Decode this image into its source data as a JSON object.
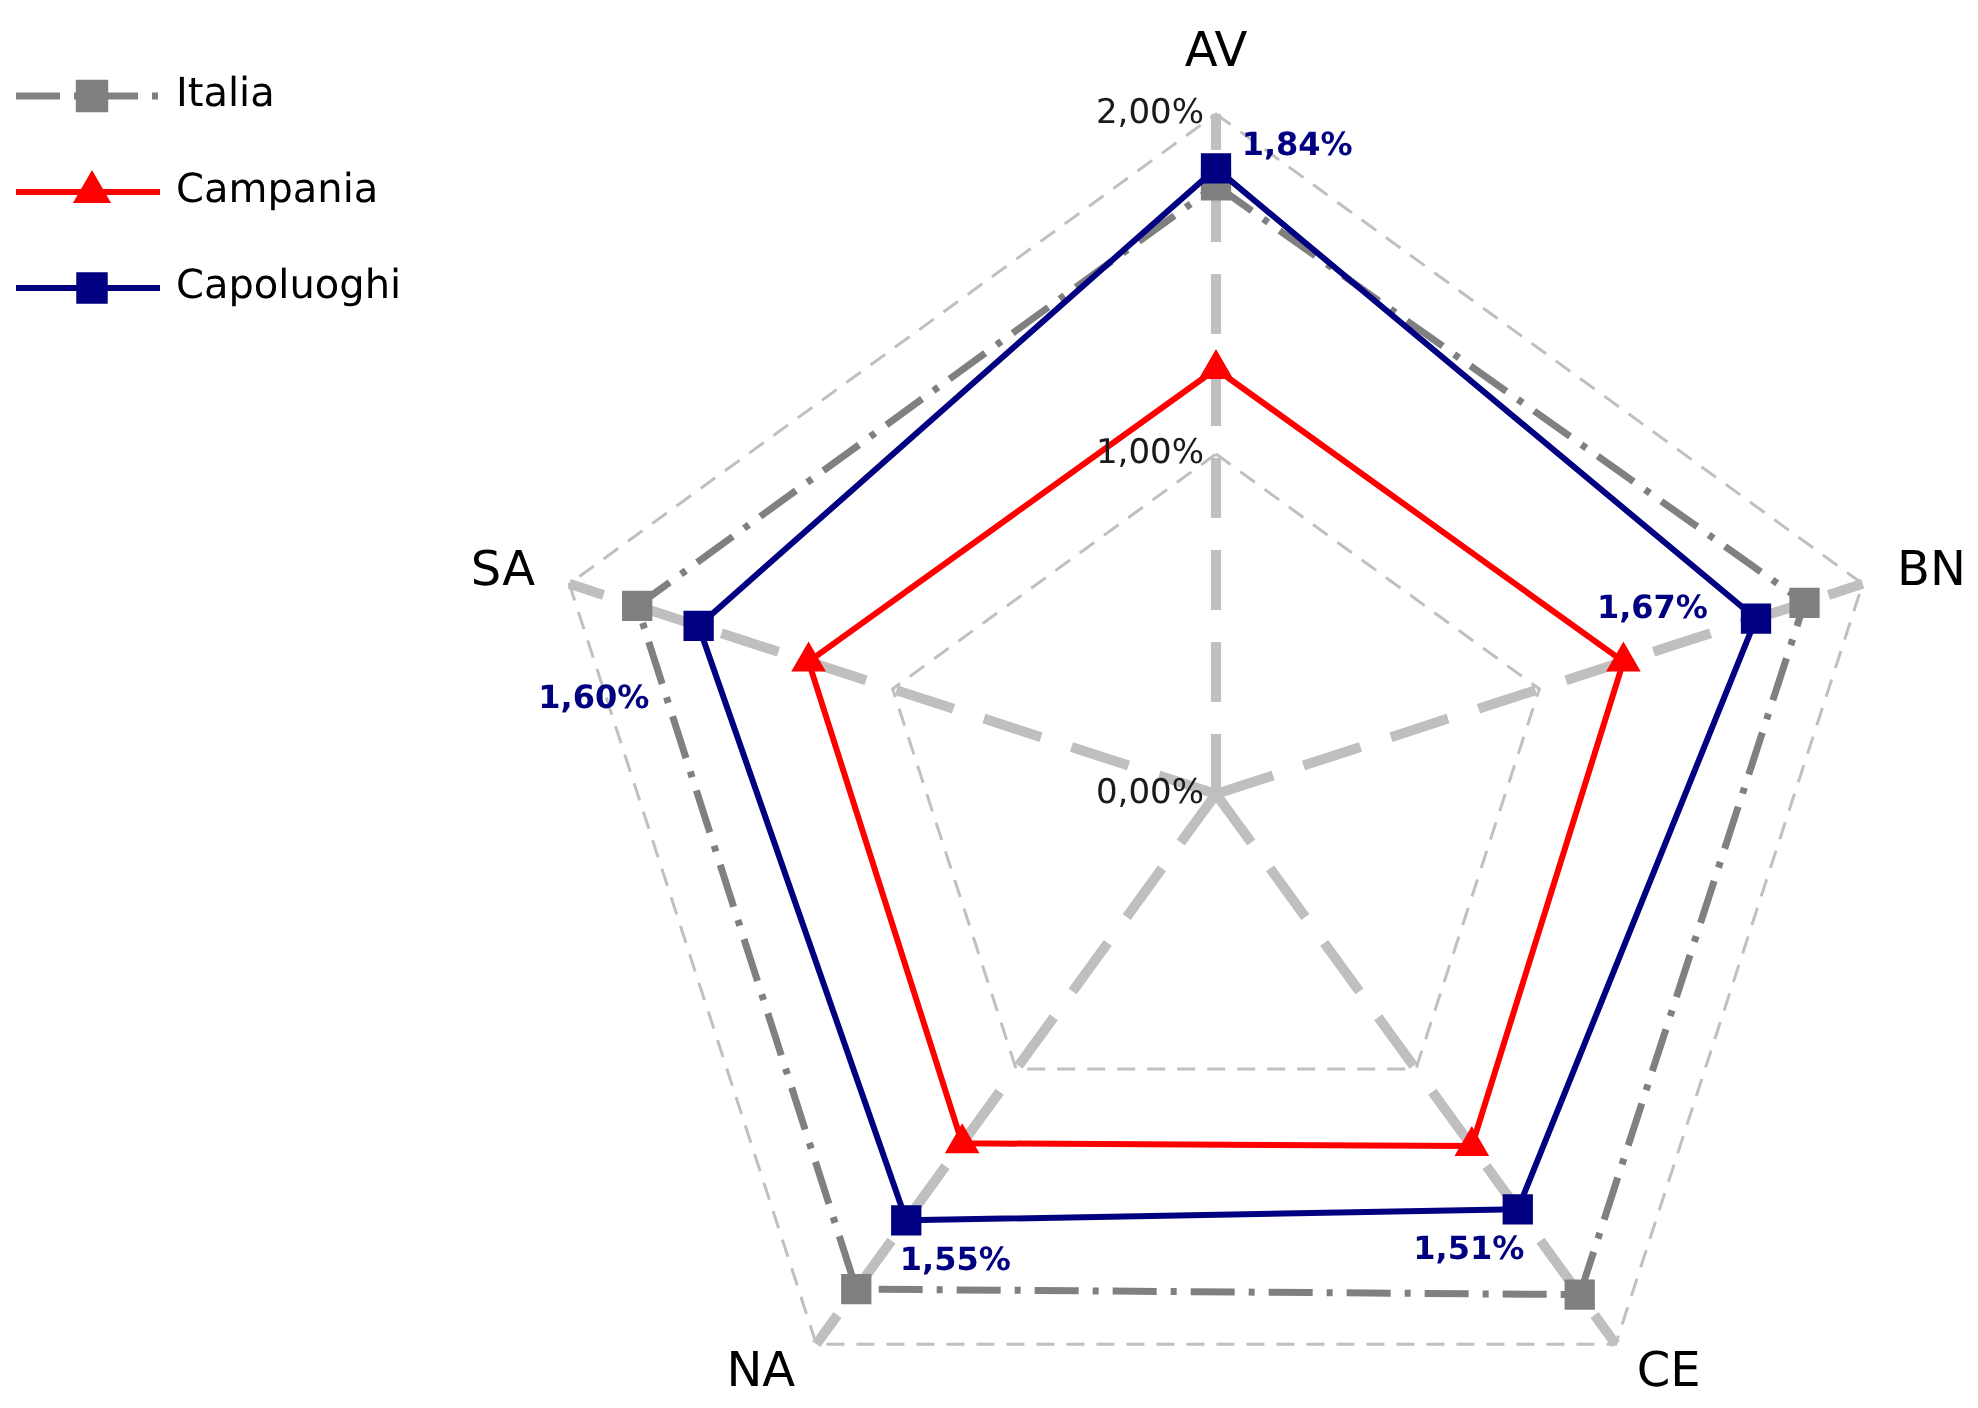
{
  "chart_data": {
    "type": "radar",
    "categories": [
      "AV",
      "BN",
      "CE",
      "NA",
      "SA"
    ],
    "series": [
      {
        "name": "Italia",
        "color": "#808080",
        "values": [
          1.79,
          1.82,
          1.82,
          1.8,
          1.79
        ],
        "marker": "square",
        "line_style": "dashed"
      },
      {
        "name": "Campania",
        "color": "#ff0000",
        "values": [
          1.25,
          1.26,
          1.28,
          1.27,
          1.26
        ],
        "marker": "triangle",
        "line_style": "solid"
      },
      {
        "name": "Capoluoghi",
        "color": "#000080",
        "values": [
          1.84,
          1.67,
          1.51,
          1.55,
          1.6
        ],
        "marker": "square",
        "line_style": "solid",
        "value_labels": [
          "1,84%",
          "1,67%",
          "1,51%",
          "1,55%",
          "1,60%"
        ]
      }
    ],
    "ylim": [
      0,
      2
    ],
    "yticks": [
      {
        "value": 0,
        "label": "0,00%"
      },
      {
        "value": 1,
        "label": "1,00%"
      },
      {
        "value": 2,
        "label": "2,00%"
      }
    ],
    "grid": true,
    "legend": "top left"
  }
}
